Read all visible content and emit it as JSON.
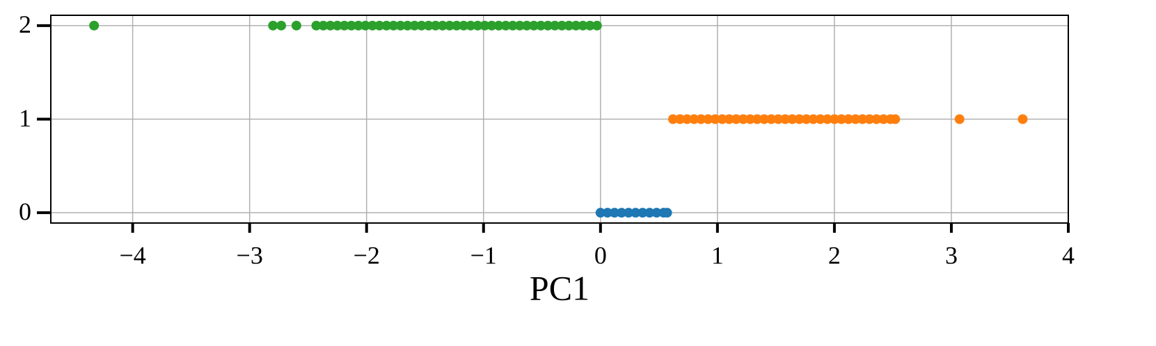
{
  "chart_data": {
    "type": "scatter",
    "xlabel": "PC1",
    "series": [
      {
        "color": "#1f77b4",
        "x": [
          0.0,
          0.06,
          0.12,
          0.18,
          0.24,
          0.3,
          0.36,
          0.42,
          0.48,
          0.54,
          0.57
        ],
        "values": [
          0,
          0,
          0,
          0,
          0,
          0,
          0,
          0,
          0,
          0,
          0
        ]
      },
      {
        "color": "#ff7f0e",
        "x": [
          0.62,
          0.68,
          0.74,
          0.8,
          0.86,
          0.92,
          0.98,
          1.04,
          1.1,
          1.16,
          1.22,
          1.28,
          1.34,
          1.4,
          1.46,
          1.52,
          1.58,
          1.64,
          1.7,
          1.76,
          1.82,
          1.88,
          1.94,
          2.0,
          2.06,
          2.12,
          2.18,
          2.24,
          2.3,
          2.36,
          2.42,
          2.48,
          2.52,
          3.07,
          3.61
        ],
        "values": [
          1,
          1,
          1,
          1,
          1,
          1,
          1,
          1,
          1,
          1,
          1,
          1,
          1,
          1,
          1,
          1,
          1,
          1,
          1,
          1,
          1,
          1,
          1,
          1,
          1,
          1,
          1,
          1,
          1,
          1,
          1,
          1,
          1,
          1,
          1
        ]
      },
      {
        "color": "#2ca02c",
        "x": [
          -4.33,
          -2.8,
          -2.73,
          -2.6,
          -2.43,
          -2.37,
          -2.31,
          -2.25,
          -2.19,
          -2.13,
          -2.07,
          -2.01,
          -1.95,
          -1.89,
          -1.83,
          -1.77,
          -1.71,
          -1.65,
          -1.59,
          -1.53,
          -1.47,
          -1.41,
          -1.35,
          -1.29,
          -1.23,
          -1.17,
          -1.11,
          -1.05,
          -0.99,
          -0.93,
          -0.87,
          -0.81,
          -0.75,
          -0.69,
          -0.63,
          -0.57,
          -0.51,
          -0.45,
          -0.39,
          -0.33,
          -0.27,
          -0.21,
          -0.15,
          -0.09,
          -0.03
        ],
        "values": [
          2,
          2,
          2,
          2,
          2,
          2,
          2,
          2,
          2,
          2,
          2,
          2,
          2,
          2,
          2,
          2,
          2,
          2,
          2,
          2,
          2,
          2,
          2,
          2,
          2,
          2,
          2,
          2,
          2,
          2,
          2,
          2,
          2,
          2,
          2,
          2,
          2,
          2,
          2,
          2,
          2,
          2,
          2,
          2,
          2
        ]
      }
    ],
    "xlim": [
      -4.7,
      4.0
    ],
    "xticks": [
      {
        "value": -4,
        "label": "−4"
      },
      {
        "value": -3,
        "label": "−3"
      },
      {
        "value": -2,
        "label": "−2"
      },
      {
        "value": -1,
        "label": "−1"
      },
      0,
      1,
      2,
      3,
      4
    ],
    "ylim": [
      -0.11,
      2.11
    ],
    "yticks": [
      0,
      1,
      2
    ],
    "grid": true
  }
}
